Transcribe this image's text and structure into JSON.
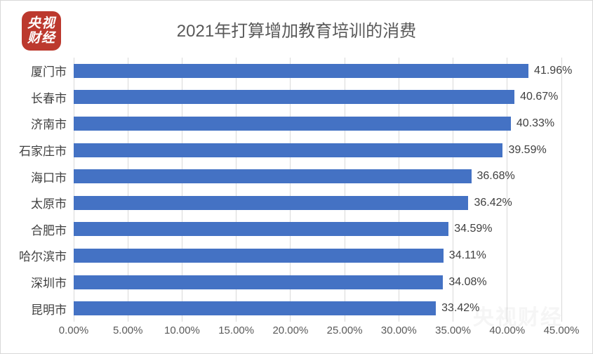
{
  "logo": {
    "line1": "央视",
    "line2": "财经"
  },
  "title": "2021年打算增加教育培训的消费",
  "watermark": "央视财经",
  "colors": {
    "bar": "#4472c4",
    "logo_red": "#bc392e",
    "grid": "#d9d9d9",
    "title_text": "#595959",
    "label_text": "#404040",
    "axis_text": "#595959"
  },
  "chart_data": {
    "type": "bar",
    "orientation": "horizontal",
    "title": "2021年打算增加教育培训的消费",
    "categories": [
      "厦门市",
      "长春市",
      "济南市",
      "石家庄市",
      "海口市",
      "太原市",
      "合肥市",
      "哈尔滨市",
      "深圳市",
      "昆明市"
    ],
    "values": [
      41.96,
      40.67,
      40.33,
      39.59,
      36.68,
      36.42,
      34.59,
      34.11,
      34.08,
      33.42
    ],
    "value_labels": [
      "41.96%",
      "40.67%",
      "40.33%",
      "39.59%",
      "36.68%",
      "36.42%",
      "34.59%",
      "34.11%",
      "34.08%",
      "33.42%"
    ],
    "x_ticks": [
      "0.00%",
      "5.00%",
      "10.00%",
      "15.00%",
      "20.00%",
      "25.00%",
      "30.00%",
      "35.00%",
      "40.00%",
      "45.00%"
    ],
    "xlim": [
      0,
      45
    ],
    "grid": true,
    "legend": false,
    "xlabel": "",
    "ylabel": ""
  }
}
